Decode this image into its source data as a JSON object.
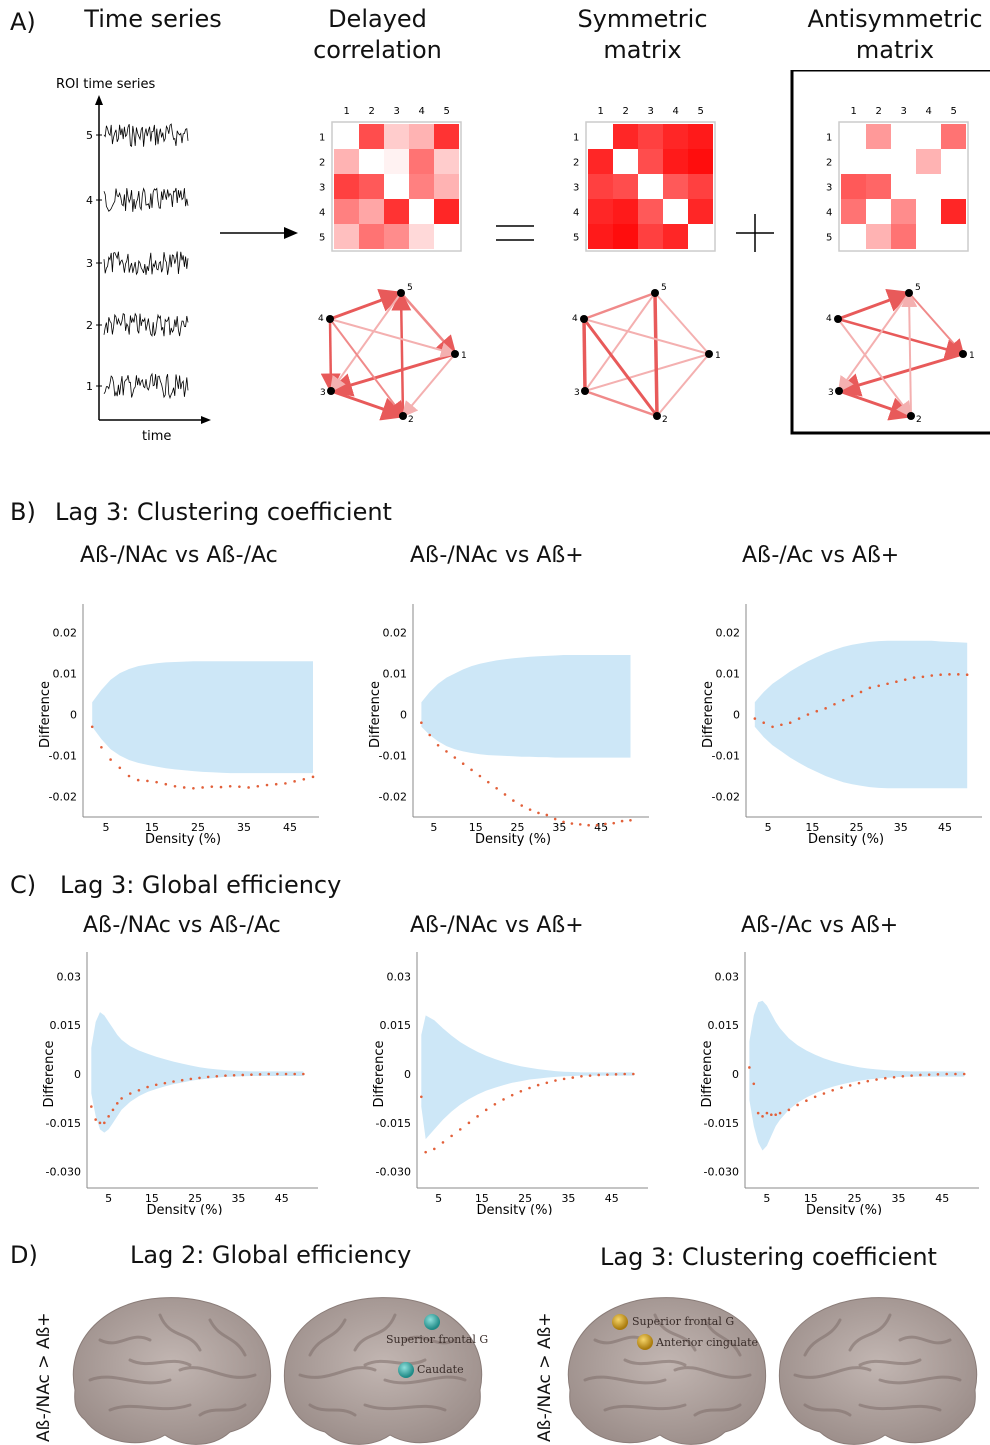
{
  "panelA": {
    "letter": "A)",
    "headings": [
      "Time series",
      "Delayed\ncorrelation",
      "Symmetric\nmatrix",
      "Antisymmetric\nmatrix"
    ],
    "roi_label": "ROI time series",
    "time_label": "time",
    "roi_ticks": [
      "5",
      "4",
      "3",
      "2",
      "1"
    ],
    "matrix_ticks": [
      "1",
      "2",
      "3",
      "4",
      "5"
    ],
    "node_labels": [
      "1",
      "2",
      "3",
      "4",
      "5"
    ],
    "delayed_matrix": [
      [
        0,
        0.7,
        0.2,
        0.3,
        0.8
      ],
      [
        0.3,
        0,
        0.05,
        0.55,
        0.2
      ],
      [
        0.75,
        0.65,
        0,
        0.5,
        0.3
      ],
      [
        0.5,
        0.35,
        0.8,
        0,
        0.85
      ],
      [
        0.25,
        0.55,
        0.45,
        0.15,
        0
      ]
    ],
    "symmetric_matrix": [
      [
        0,
        0.85,
        0.75,
        0.85,
        0.9
      ],
      [
        0.85,
        0,
        0.7,
        0.9,
        0.95
      ],
      [
        0.75,
        0.7,
        0,
        0.65,
        0.75
      ],
      [
        0.85,
        0.9,
        0.65,
        0,
        0.85
      ],
      [
        0.9,
        0.95,
        0.75,
        0.85,
        0
      ]
    ],
    "antisymmetric_matrix": [
      [
        0,
        0.4,
        0,
        0,
        0.55
      ],
      [
        0,
        0,
        0,
        0.3,
        0
      ],
      [
        0.65,
        0.6,
        0,
        0,
        0
      ],
      [
        0.55,
        0,
        0.45,
        0,
        0.85
      ],
      [
        0,
        0.3,
        0.55,
        0,
        0
      ]
    ]
  },
  "panelB": {
    "letter": "B)",
    "title": "Lag 3: Clustering coefficient",
    "charts": [
      {
        "subtitle": "Aß-/NAc vs Aß-/Ac"
      },
      {
        "subtitle": "Aß-/NAc vs Aß+"
      },
      {
        "subtitle": "Aß-/Ac vs Aß+"
      }
    ]
  },
  "panelC": {
    "letter": "C)",
    "title": "Lag 3: Global efficiency",
    "charts": [
      {
        "subtitle": "Aß-/NAc vs Aß-/Ac"
      },
      {
        "subtitle": "Aß-/NAc vs Aß+"
      },
      {
        "subtitle": "Aß-/Ac vs Aß+"
      }
    ]
  },
  "panelD": {
    "letter": "D)",
    "title_left": "Lag 2: Global efficiency",
    "title_right": "Lag 3: Clustering coefficient",
    "side_label": "Aß-/NAc > Aß+",
    "left_regions": [
      "Superior frontal G",
      "Caudate"
    ],
    "right_regions": [
      "Superior frontal G",
      "Anterior cingulate"
    ],
    "colors": {
      "left_marker": "#2fa3a0",
      "right_marker": "#d2a01e",
      "brain": "#a89a96"
    }
  },
  "chart_data": [
    {
      "type": "scatter",
      "subtitle": "Aß-/NAc vs Aß-/Ac",
      "ylabel": "Difference",
      "xlabel": "Density (%)",
      "xticks": [
        5,
        15,
        25,
        35,
        45
      ],
      "yticks": [
        0.02,
        0.01,
        0,
        -0.01,
        -0.02
      ],
      "ytick_labels": [
        "0.02",
        "0.01",
        "0",
        "-0.01",
        "-0.02"
      ],
      "xlim": [
        0,
        50
      ],
      "ylim": [
        -0.025,
        0.025
      ],
      "x": [
        2,
        4,
        6,
        8,
        10,
        12,
        14,
        16,
        18,
        20,
        22,
        24,
        26,
        28,
        30,
        32,
        34,
        36,
        38,
        40,
        42,
        44,
        46,
        48,
        50
      ],
      "values": [
        -0.003,
        -0.008,
        -0.011,
        -0.013,
        -0.015,
        -0.016,
        -0.0162,
        -0.0165,
        -0.017,
        -0.0175,
        -0.0178,
        -0.018,
        -0.0178,
        -0.0176,
        -0.0177,
        -0.0175,
        -0.0176,
        -0.0178,
        -0.0175,
        -0.0172,
        -0.017,
        -0.0168,
        -0.0163,
        -0.0158,
        -0.0152
      ],
      "band_upper": [
        0.003,
        0.006,
        0.0085,
        0.0101,
        0.0111,
        0.0118,
        0.0122,
        0.0125,
        0.0127,
        0.0128,
        0.0129,
        0.013,
        0.013,
        0.013,
        0.013,
        0.013,
        0.013,
        0.013,
        0.013,
        0.013,
        0.013,
        0.013,
        0.013,
        0.013,
        0.013
      ],
      "band_lower": [
        -0.003,
        -0.006,
        -0.0085,
        -0.01,
        -0.0111,
        -0.0118,
        -0.0123,
        -0.0127,
        -0.0131,
        -0.0134,
        -0.0136,
        -0.0138,
        -0.014,
        -0.0141,
        -0.0142,
        -0.0143,
        -0.0143,
        -0.0143,
        -0.0143,
        -0.0143,
        -0.0143,
        -0.0143,
        -0.0143,
        -0.0143,
        -0.0143
      ]
    },
    {
      "type": "scatter",
      "subtitle": "Aß-/NAc vs Aß+",
      "ylabel": "Difference",
      "xlabel": "Density (%)",
      "xticks": [
        5,
        15,
        25,
        35,
        45
      ],
      "yticks": [
        0.02,
        0.01,
        0,
        -0.01,
        -0.02
      ],
      "ytick_labels": [
        "0.02",
        "0.01",
        "0",
        "-0.01",
        "-0.02"
      ],
      "xlim": [
        0,
        55
      ],
      "ylim": [
        -0.025,
        0.025
      ],
      "x": [
        2,
        4,
        6,
        8,
        10,
        12,
        14,
        16,
        18,
        20,
        22,
        24,
        26,
        28,
        30,
        32,
        34,
        36,
        38,
        40,
        42,
        44,
        46,
        48,
        50,
        52
      ],
      "values": [
        -0.002,
        -0.005,
        -0.0075,
        -0.009,
        -0.0105,
        -0.012,
        -0.0135,
        -0.015,
        -0.0165,
        -0.018,
        -0.0195,
        -0.021,
        -0.0222,
        -0.0232,
        -0.024,
        -0.0245,
        -0.0255,
        -0.0262,
        -0.0266,
        -0.0268,
        -0.027,
        -0.027,
        -0.0267,
        -0.0265,
        -0.026,
        -0.0258
      ],
      "band_upper": [
        0.003,
        0.0055,
        0.0075,
        0.009,
        0.01,
        0.011,
        0.0118,
        0.0124,
        0.0128,
        0.0132,
        0.0135,
        0.0137,
        0.0139,
        0.0141,
        0.0142,
        0.0143,
        0.0144,
        0.0145,
        0.0145,
        0.0145,
        0.0145,
        0.0145,
        0.0145,
        0.0145,
        0.0145,
        0.0145
      ],
      "band_lower": [
        -0.003,
        -0.005,
        -0.0065,
        -0.0077,
        -0.0085,
        -0.009,
        -0.0094,
        -0.0097,
        -0.0099,
        -0.01,
        -0.0101,
        -0.0102,
        -0.0103,
        -0.0103,
        -0.0104,
        -0.0104,
        -0.0105,
        -0.0105,
        -0.0105,
        -0.0105,
        -0.0105,
        -0.0105,
        -0.0105,
        -0.0105,
        -0.0105,
        -0.0105
      ]
    },
    {
      "type": "scatter",
      "subtitle": "Aß-/Ac vs Aß+",
      "ylabel": "Difference",
      "xlabel": "Density (%)",
      "xticks": [
        5,
        15,
        25,
        35,
        45
      ],
      "yticks": [
        0.02,
        0.01,
        0,
        -0.01,
        -0.02
      ],
      "ytick_labels": [
        "0.02",
        "0.01",
        "0",
        "-0.01",
        "-0.02"
      ],
      "xlim": [
        0,
        52
      ],
      "ylim": [
        -0.025,
        0.025
      ],
      "x": [
        2,
        4,
        6,
        8,
        10,
        12,
        14,
        16,
        18,
        20,
        22,
        24,
        26,
        28,
        30,
        32,
        34,
        36,
        38,
        40,
        42,
        44,
        46,
        48,
        50
      ],
      "values": [
        -0.001,
        -0.002,
        -0.003,
        -0.0025,
        -0.002,
        -0.001,
        0,
        0.0008,
        0.0015,
        0.0025,
        0.0035,
        0.0045,
        0.0055,
        0.0065,
        0.007,
        0.0075,
        0.008,
        0.0085,
        0.009,
        0.0092,
        0.0095,
        0.0097,
        0.0098,
        0.0098,
        0.0097
      ],
      "band_upper": [
        0.003,
        0.0055,
        0.0075,
        0.009,
        0.0105,
        0.0118,
        0.013,
        0.014,
        0.015,
        0.0158,
        0.0165,
        0.017,
        0.0174,
        0.0177,
        0.0179,
        0.018,
        0.018,
        0.018,
        0.018,
        0.018,
        0.018,
        0.0178,
        0.0177,
        0.0176,
        0.0175
      ],
      "band_lower": [
        -0.003,
        -0.0055,
        -0.0075,
        -0.009,
        -0.0105,
        -0.0118,
        -0.013,
        -0.014,
        -0.015,
        -0.0158,
        -0.0165,
        -0.017,
        -0.0174,
        -0.0177,
        -0.0179,
        -0.018,
        -0.018,
        -0.018,
        -0.018,
        -0.018,
        -0.018,
        -0.018,
        -0.018,
        -0.018,
        -0.018
      ]
    },
    {
      "type": "scatter",
      "subtitle": "Aß-/NAc vs Aß-/Ac",
      "ylabel": "Difference",
      "xlabel": "Density (%)",
      "xticks": [
        5,
        15,
        25,
        35,
        45
      ],
      "yticks": [
        0.03,
        0.015,
        0,
        -0.015,
        -0.03
      ],
      "ytick_labels": [
        "0.03",
        "0.015",
        "0",
        "-0.015",
        "-0.030"
      ],
      "xlim": [
        0,
        52
      ],
      "ylim": [
        -0.035,
        0.035
      ],
      "x": [
        1,
        2,
        3,
        4,
        5,
        6,
        7,
        8,
        10,
        12,
        14,
        16,
        18,
        20,
        22,
        24,
        26,
        28,
        30,
        32,
        34,
        36,
        38,
        40,
        42,
        44,
        46,
        48,
        50
      ],
      "values": [
        -0.01,
        -0.014,
        -0.015,
        -0.015,
        -0.013,
        -0.011,
        -0.009,
        -0.0075,
        -0.006,
        -0.005,
        -0.004,
        -0.0033,
        -0.0028,
        -0.0023,
        -0.0019,
        -0.0015,
        -0.0012,
        -0.0009,
        -0.0007,
        -0.0005,
        -0.0004,
        -0.0003,
        -0.0002,
        -0.0001,
        0,
        0,
        0,
        0,
        0
      ],
      "band_upper": [
        0.008,
        0.016,
        0.019,
        0.018,
        0.016,
        0.014,
        0.012,
        0.0105,
        0.0085,
        0.0072,
        0.0062,
        0.0053,
        0.0045,
        0.0038,
        0.0032,
        0.0026,
        0.0021,
        0.0017,
        0.0014,
        0.0012,
        0.001,
        0.0009,
        0.0008,
        0.0008,
        0.0008,
        0.0008,
        0.0008,
        0.0008,
        0.0008
      ],
      "band_lower": [
        -0.006,
        -0.013,
        -0.017,
        -0.018,
        -0.017,
        -0.015,
        -0.013,
        -0.011,
        -0.0085,
        -0.0068,
        -0.0055,
        -0.0046,
        -0.0038,
        -0.0031,
        -0.0026,
        -0.0021,
        -0.0017,
        -0.0014,
        -0.0011,
        -0.0009,
        -0.0008,
        -0.0007,
        -0.0006,
        -0.0006,
        -0.0006,
        -0.0006,
        -0.0006,
        -0.0006,
        -0.0006
      ]
    },
    {
      "type": "scatter",
      "subtitle": "Aß-/NAc vs Aß+",
      "ylabel": "Difference",
      "xlabel": "Density (%)",
      "xticks": [
        5,
        15,
        25,
        35,
        45
      ],
      "yticks": [
        0.03,
        0.015,
        0,
        -0.015,
        -0.03
      ],
      "ytick_labels": [
        "0.03",
        "0.015",
        "0",
        "-0.015",
        "-0.030"
      ],
      "xlim": [
        0,
        52
      ],
      "ylim": [
        -0.035,
        0.035
      ],
      "x": [
        1,
        2,
        4,
        6,
        8,
        10,
        12,
        14,
        16,
        18,
        20,
        22,
        24,
        26,
        28,
        30,
        32,
        34,
        36,
        38,
        40,
        42,
        44,
        46,
        48,
        50
      ],
      "values": [
        -0.007,
        -0.024,
        -0.023,
        -0.021,
        -0.019,
        -0.017,
        -0.015,
        -0.013,
        -0.011,
        -0.0093,
        -0.0078,
        -0.0065,
        -0.0053,
        -0.0043,
        -0.0034,
        -0.0027,
        -0.002,
        -0.0015,
        -0.0011,
        -0.0007,
        -0.0005,
        -0.0003,
        -0.0002,
        -0.0001,
        0,
        0
      ],
      "band_upper": [
        0.012,
        0.018,
        0.0165,
        0.014,
        0.0118,
        0.0098,
        0.0082,
        0.0068,
        0.0056,
        0.0046,
        0.0037,
        0.003,
        0.0024,
        0.0019,
        0.0015,
        0.0012,
        0.0009,
        0.0007,
        0.0006,
        0.0005,
        0.0005,
        0.0005,
        0.0005,
        0.0005,
        0.0005,
        0.0005
      ],
      "band_lower": [
        -0.01,
        -0.02,
        -0.017,
        -0.014,
        -0.0115,
        -0.0094,
        -0.0077,
        -0.0063,
        -0.0051,
        -0.0042,
        -0.0034,
        -0.0027,
        -0.0022,
        -0.0017,
        -0.0014,
        -0.0011,
        -0.0009,
        -0.0007,
        -0.0006,
        -0.0005,
        -0.0005,
        -0.0005,
        -0.0005,
        -0.0005,
        -0.0005,
        -0.0005
      ]
    },
    {
      "type": "scatter",
      "subtitle": "Aß-/Ac vs Aß+",
      "ylabel": "Difference",
      "xlabel": "Density (%)",
      "xticks": [
        5,
        15,
        25,
        35,
        45
      ],
      "yticks": [
        0.03,
        0.015,
        0,
        -0.015,
        -0.03
      ],
      "ytick_labels": [
        "0.03",
        "0.015",
        "0",
        "-0.015",
        "-0.030"
      ],
      "xlim": [
        0,
        52
      ],
      "ylim": [
        -0.035,
        0.035
      ],
      "x": [
        1,
        2,
        3,
        4,
        5,
        6,
        7,
        8,
        10,
        12,
        14,
        16,
        18,
        20,
        22,
        24,
        26,
        28,
        30,
        32,
        34,
        36,
        38,
        40,
        42,
        44,
        46,
        48,
        50
      ],
      "values": [
        0.002,
        -0.003,
        -0.012,
        -0.013,
        -0.012,
        -0.0125,
        -0.0125,
        -0.012,
        -0.011,
        -0.0095,
        -0.0082,
        -0.007,
        -0.006,
        -0.005,
        -0.0042,
        -0.0035,
        -0.0028,
        -0.0022,
        -0.0017,
        -0.0013,
        -0.001,
        -0.0007,
        -0.0005,
        -0.0003,
        -0.0002,
        -0.0001,
        0,
        0,
        0
      ],
      "band_upper": [
        0.01,
        0.018,
        0.022,
        0.0225,
        0.021,
        0.0185,
        0.016,
        0.014,
        0.011,
        0.0088,
        0.0072,
        0.0059,
        0.0048,
        0.0039,
        0.0032,
        0.0026,
        0.0021,
        0.0017,
        0.0014,
        0.0012,
        0.001,
        0.0009,
        0.0008,
        0.0008,
        0.0008,
        0.0008,
        0.0008,
        0.0008,
        0.0008
      ],
      "band_lower": [
        -0.008,
        -0.016,
        -0.021,
        -0.0235,
        -0.022,
        -0.019,
        -0.016,
        -0.014,
        -0.011,
        -0.0088,
        -0.0072,
        -0.0059,
        -0.0048,
        -0.0039,
        -0.0032,
        -0.0026,
        -0.0021,
        -0.0017,
        -0.0014,
        -0.0012,
        -0.001,
        -0.0009,
        -0.0008,
        -0.0008,
        -0.0008,
        -0.0008,
        -0.0008,
        -0.0008,
        -0.0008
      ]
    }
  ]
}
